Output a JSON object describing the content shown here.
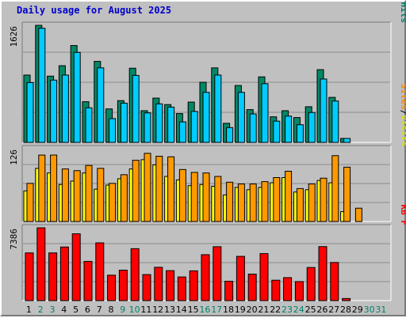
{
  "chart_data": {
    "type": "bar",
    "title": "Daily usage for August 2025",
    "x": [
      "1",
      "2",
      "3",
      "4",
      "5",
      "6",
      "7",
      "8",
      "9",
      "10",
      "11",
      "12",
      "13",
      "14",
      "15",
      "16",
      "17",
      "18",
      "19",
      "20",
      "21",
      "22",
      "23",
      "24",
      "25",
      "26",
      "27",
      "28",
      "29",
      "30",
      "31"
    ],
    "weekend_days": [
      "2",
      "3",
      "9",
      "10",
      "16",
      "17",
      "23",
      "24",
      "30",
      "31"
    ],
    "panels": [
      {
        "id": "hits-files",
        "ymax_label": "1626",
        "ymax": 1626,
        "legend": [
          {
            "text": "Pages",
            "color": "#00bcd4"
          },
          {
            "text": "/",
            "color": "#000000"
          },
          {
            "text": "Files",
            "color": "#0044dd"
          },
          {
            "text": "/",
            "color": "#000000"
          },
          {
            "text": "Hits",
            "color": "#00806a"
          }
        ],
        "series": [
          {
            "name": "Hits",
            "color": "#008866",
            "values": [
              935,
              1626,
              920,
              1065,
              1345,
              565,
              1125,
              465,
              580,
              1030,
              440,
              615,
              525,
              400,
              560,
              835,
              1035,
              265,
              790,
              455,
              910,
              355,
              440,
              345,
              495,
              1010,
              625,
              55,
              0,
              0,
              0
            ]
          },
          {
            "name": "Files",
            "color": "#00ccff",
            "values": [
              830,
              1585,
              865,
              935,
              1250,
              480,
              1035,
              330,
              545,
              930,
              410,
              535,
              490,
              285,
              430,
              695,
              935,
              205,
              695,
              395,
              815,
              295,
              365,
              245,
              415,
              880,
              575,
              55,
              0,
              0,
              0
            ]
          }
        ]
      },
      {
        "id": "visits-sites",
        "ymax_label": "126",
        "ymax": 126,
        "legend": [
          {
            "text": "Sites",
            "color": "#ff8800"
          },
          {
            "text": "/",
            "color": "#000000"
          },
          {
            "text": "Visits",
            "color": "#dddd00"
          }
        ],
        "series": [
          {
            "name": "Visits",
            "color": "#ffff00",
            "values": [
              53,
              92,
              84,
              64,
              70,
              84,
              56,
              63,
              74,
              91,
              107,
              98,
              78,
              72,
              62,
              64,
              61,
              46,
              59,
              55,
              59,
              67,
              76,
              51,
              55,
              71,
              67,
              17,
              0,
              0,
              0
            ]
          },
          {
            "name": "Sites",
            "color": "#ff9900",
            "values": [
              66,
              115,
              115,
              91,
              88,
              97,
              92,
              66,
              81,
              106,
              118,
              113,
              112,
              90,
              85,
              84,
              78,
              68,
              65,
              65,
              69,
              76,
              87,
              57,
              65,
              75,
              114,
              94,
              23,
              0,
              0
            ]
          }
        ]
      },
      {
        "id": "kbytes",
        "ymax_label": "7386",
        "ymax": 7386,
        "legend": [
          {
            "text": "KB F",
            "color": "#ff0000"
          }
        ],
        "series": [
          {
            "name": "KB F",
            "color": "#ff0000",
            "values": [
              4840,
              7386,
              4840,
              5440,
              6780,
              3980,
              5860,
              2580,
              3090,
              5270,
              2640,
              3380,
              3040,
              2400,
              3020,
              4660,
              5470,
              1960,
              4490,
              2690,
              4770,
              2070,
              2330,
              1930,
              3360,
              5480,
              3870,
              210,
              0,
              0,
              0
            ]
          }
        ]
      }
    ]
  }
}
